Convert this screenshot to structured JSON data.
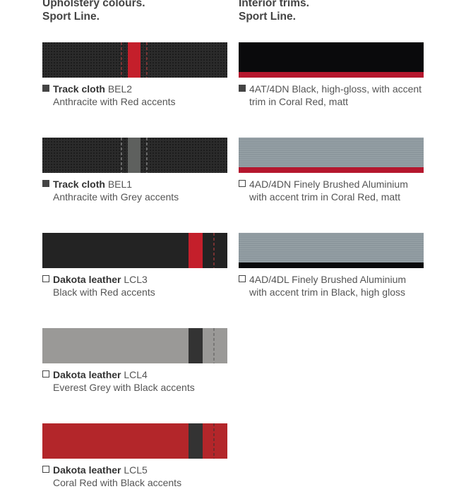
{
  "upholstery": {
    "title": [
      "Upholstery colours.",
      "Sport Line."
    ],
    "items": [
      {
        "name": "Track cloth",
        "code": "BEL2",
        "description": "Anthracite with Red accents",
        "filled": true
      },
      {
        "name": "Track cloth",
        "code": "BEL1",
        "description": "Anthracite with Grey accents",
        "filled": true
      },
      {
        "name": "Dakota leather",
        "code": "LCL3",
        "description": "Black with Red accents",
        "filled": false
      },
      {
        "name": "Dakota leather",
        "code": "LCL4",
        "description": "Everest Grey with Black accents",
        "filled": false
      },
      {
        "name": "Dakota leather",
        "code": "LCL5",
        "description": "Coral Red with Black accents",
        "filled": false
      }
    ]
  },
  "trims": {
    "title": [
      "Interior trims.",
      "Sport Line."
    ],
    "items": [
      {
        "lines": [
          "4AT/4DN Black, high-gloss, with accent",
          "trim in Coral Red, matt"
        ],
        "filled": true
      },
      {
        "lines": [
          "4AD/4DN Finely Brushed Aluminium",
          "with accent trim in Coral Red, matt"
        ],
        "filled": false
      },
      {
        "lines": [
          "4AD/4DL Finely Brushed Aluminium",
          "with accent trim in Black, high gloss"
        ],
        "filled": false
      }
    ]
  }
}
